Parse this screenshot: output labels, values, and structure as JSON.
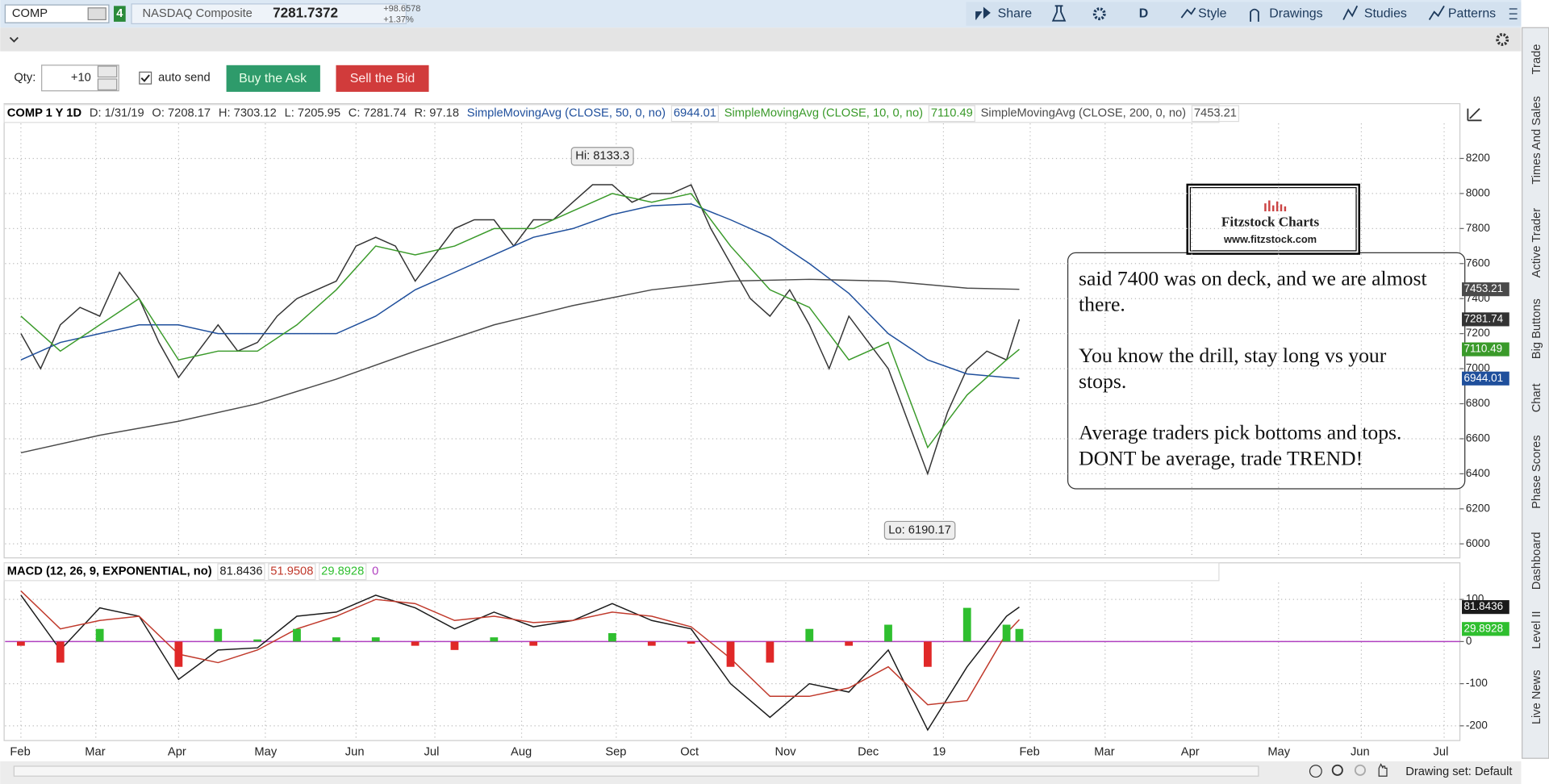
{
  "toolbar": {
    "symbol": "COMP",
    "link": "4",
    "name": "NASDAQ Composite",
    "last": "7281.7372",
    "change": "+98.6578",
    "change_pct": "+1.37%",
    "buttons": [
      "Share",
      "D",
      "Style",
      "Drawings",
      "Studies",
      "Patterns"
    ]
  },
  "order_bar": {
    "qty_label": "Qty:",
    "qty": "+10",
    "auto_send": "auto send",
    "buy": "Buy the Ask",
    "sell": "Sell the Bid"
  },
  "side_tabs": [
    "Trade",
    "Times And Sales",
    "Active Trader",
    "Big Buttons",
    "Chart",
    "Phase Scores",
    "Dashboard",
    "Level II",
    "Live News"
  ],
  "status": {
    "drawing_set": "Drawing set: Default"
  },
  "note": {
    "logo_title": "Fitzstock Charts",
    "logo_url": "www.fitzstock.com",
    "paragraphs": [
      [
        "said 7400 was on deck, and we are almost",
        "there."
      ],
      [
        "You know the drill, stay long vs your",
        "stops."
      ],
      [
        "Average traders pick bottoms and tops.",
        "DONT be average, trade TREND!"
      ]
    ]
  },
  "chart_data": [
    {
      "type": "line",
      "title": "COMP 1 Y 1D",
      "info": [
        "D: 1/31/19",
        "O: 7208.17",
        "H: 7303.12",
        "L: 7205.95",
        "C: 7281.74",
        "R: 97.18"
      ],
      "xlim": [
        -4,
        365
      ],
      "ylim": [
        5920,
        8400
      ],
      "yticks": [
        6000,
        6200,
        6400,
        6600,
        6800,
        7000,
        7200,
        7400,
        7600,
        7800,
        8000,
        8200
      ],
      "grid": true,
      "series": [
        {
          "color": "#333333",
          "x": [
            0,
            5,
            10,
            15,
            20,
            25,
            30,
            35,
            40,
            45,
            50,
            55,
            60,
            65,
            70,
            75,
            80,
            85,
            90,
            95,
            100,
            105,
            110,
            115,
            120,
            125,
            130,
            135,
            140,
            145,
            150,
            155,
            160,
            165,
            170,
            175,
            180,
            185,
            190,
            195,
            200,
            205,
            210,
            215,
            220,
            225,
            230,
            235,
            240,
            245,
            250,
            253.25
          ],
          "values": [
            7200,
            7000,
            7250,
            7350,
            7300,
            7550,
            7400,
            7150,
            6950,
            7100,
            7250,
            7100,
            7150,
            7300,
            7400,
            7450,
            7500,
            7700,
            7750,
            7700,
            7500,
            7650,
            7800,
            7850,
            7850,
            7700,
            7850,
            7850,
            7950,
            8050,
            8050,
            7950,
            8000,
            8000,
            8050,
            7800,
            7600,
            7400,
            7300,
            7450,
            7250,
            7000,
            7300,
            7150,
            7000,
            6700,
            6400,
            6750,
            7000,
            7100,
            7050,
            7281.74
          ]
        },
        {
          "name": "SimpleMovingAvg (CLOSE, 50, 0, no)",
          "color": "#1f4f9c",
          "x": [
            0,
            10,
            20,
            30,
            40,
            50,
            60,
            70,
            80,
            90,
            100,
            110,
            120,
            130,
            140,
            150,
            160,
            170,
            180,
            190,
            200,
            210,
            220,
            230,
            240,
            250,
            253.25
          ],
          "values": [
            7050,
            7150,
            7200,
            7250,
            7250,
            7200,
            7200,
            7200,
            7200,
            7300,
            7450,
            7550,
            7650,
            7750,
            7800,
            7880,
            7930,
            7940,
            7850,
            7750,
            7600,
            7430,
            7200,
            7050,
            6970,
            6950,
            6944.01
          ]
        },
        {
          "name": "SimpleMovingAvg (CLOSE, 10, 0, no)",
          "color": "#3a9a2a",
          "x": [
            0,
            10,
            20,
            30,
            40,
            50,
            60,
            70,
            80,
            90,
            100,
            110,
            120,
            130,
            140,
            150,
            160,
            170,
            180,
            190,
            200,
            210,
            220,
            230,
            240,
            250,
            253.25
          ],
          "values": [
            7300,
            7100,
            7250,
            7400,
            7050,
            7100,
            7100,
            7250,
            7450,
            7700,
            7650,
            7700,
            7800,
            7800,
            7900,
            8000,
            7950,
            8000,
            7700,
            7450,
            7350,
            7050,
            7150,
            6550,
            6850,
            7050,
            7110.49
          ]
        },
        {
          "name": "SimpleMovingAvg (CLOSE, 200, 0, no)",
          "color": "#4a4a4a",
          "x": [
            0,
            20,
            40,
            60,
            80,
            100,
            120,
            140,
            160,
            180,
            200,
            220,
            240,
            253.25
          ],
          "values": [
            6520,
            6620,
            6700,
            6800,
            6940,
            7100,
            7250,
            7360,
            7450,
            7500,
            7510,
            7500,
            7460,
            7453.21
          ]
        }
      ],
      "annotations": [
        {
          "text": "Hi: 8133.3",
          "x": 147.5,
          "value": 8133.3
        },
        {
          "text": "Lo: 6190.17",
          "x": 228,
          "value": 6190.17
        }
      ]
    },
    {
      "type": "line",
      "title": "MACD (12, 26, 9, EXPONENTIAL, no)",
      "xlim": [
        -4,
        365
      ],
      "ylim": [
        -235,
        140
      ],
      "yticks": [
        -200,
        -100,
        0,
        100
      ],
      "grid": true,
      "xticks": [
        {
          "value": 0,
          "label": "Feb"
        },
        {
          "value": 19,
          "label": "Mar"
        },
        {
          "value": 40,
          "label": "Apr"
        },
        {
          "value": 62,
          "label": "May"
        },
        {
          "value": 85,
          "label": "Jun"
        },
        {
          "value": 105,
          "label": "Jul"
        },
        {
          "value": 127,
          "label": "Aug"
        },
        {
          "value": 151,
          "label": "Sep"
        },
        {
          "value": 170,
          "label": "Oct"
        },
        {
          "value": 194,
          "label": "Nov"
        },
        {
          "value": 215,
          "label": "Dec"
        },
        {
          "value": 234,
          "label": "19"
        },
        {
          "value": 256,
          "label": "Feb"
        },
        {
          "value": 275,
          "label": "Mar"
        },
        {
          "value": 297,
          "label": "Apr"
        },
        {
          "value": 319,
          "label": "May"
        },
        {
          "value": 340,
          "label": "Jun"
        },
        {
          "value": 361,
          "label": "Jul"
        }
      ],
      "series": [
        {
          "color": "#1a1a1a",
          "x": [
            0,
            10,
            20,
            30,
            40,
            50,
            60,
            70,
            80,
            90,
            100,
            110,
            120,
            130,
            140,
            150,
            160,
            170,
            180,
            190,
            200,
            210,
            220,
            230,
            240,
            250,
            253.25
          ],
          "values": [
            110,
            -20,
            80,
            60,
            -90,
            -20,
            -15,
            60,
            70,
            110,
            80,
            30,
            70,
            35,
            50,
            90,
            50,
            30,
            -100,
            -180,
            -100,
            -120,
            -20,
            -210,
            -60,
            60,
            81.8436
          ]
        },
        {
          "color": "#c0392b",
          "x": [
            0,
            10,
            20,
            30,
            40,
            50,
            60,
            70,
            80,
            90,
            100,
            110,
            120,
            130,
            140,
            150,
            160,
            170,
            180,
            190,
            200,
            210,
            220,
            230,
            240,
            250,
            253.25
          ],
          "values": [
            120,
            30,
            50,
            60,
            -30,
            -50,
            -20,
            30,
            60,
            100,
            90,
            50,
            60,
            45,
            50,
            70,
            60,
            35,
            -40,
            -130,
            -130,
            -110,
            -60,
            -150,
            -140,
            20,
            51.9508
          ]
        },
        {
          "type": "bar",
          "color": "#2fbf2f",
          "down_color": "#e02828",
          "x": [
            0,
            10,
            20,
            30,
            40,
            50,
            60,
            70,
            80,
            90,
            100,
            110,
            120,
            130,
            140,
            150,
            160,
            170,
            180,
            190,
            200,
            210,
            220,
            230,
            240,
            250,
            253.25
          ],
          "values": [
            -10,
            -50,
            30,
            0,
            -60,
            30,
            5,
            30,
            10,
            10,
            -10,
            -20,
            10,
            -10,
            0,
            20,
            -10,
            -5,
            -60,
            -50,
            30,
            -10,
            40,
            -60,
            80,
            40,
            29.8928
          ]
        }
      ],
      "zero_line": 0,
      "zero_color": "#b040c0"
    }
  ]
}
